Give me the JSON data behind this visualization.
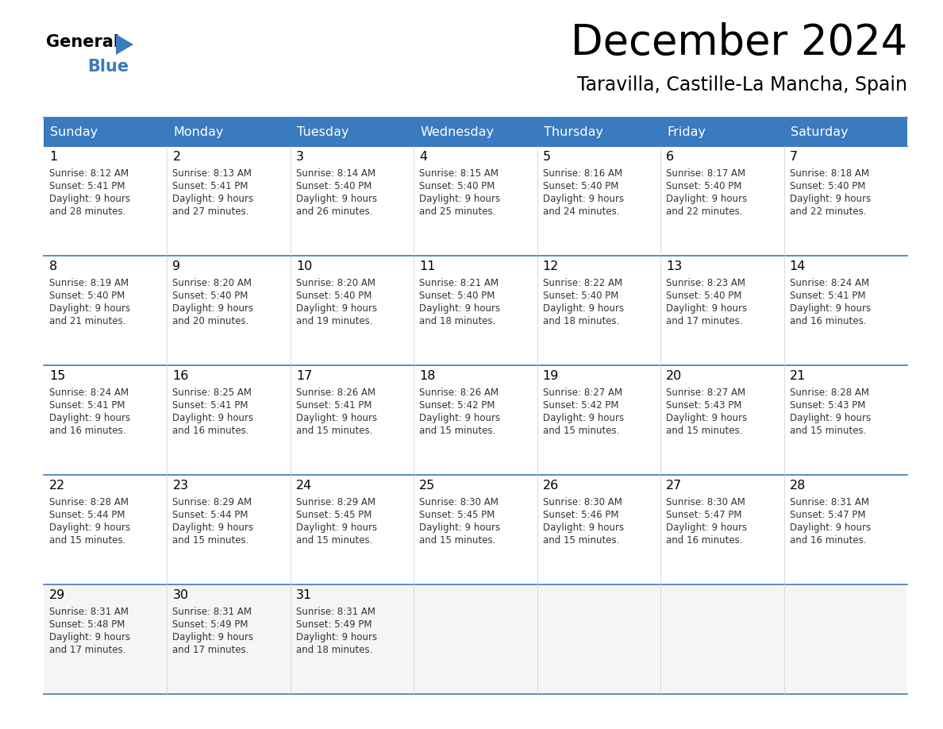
{
  "title": "December 2024",
  "subtitle": "Taravilla, Castille-La Mancha, Spain",
  "header_color": "#3a7abf",
  "header_text_color": "#ffffff",
  "cell_bg_white": "#ffffff",
  "cell_bg_gray": "#f2f2f2",
  "text_color_dark": "#222222",
  "line_color": "#3a7abf",
  "days_of_week": [
    "Sunday",
    "Monday",
    "Tuesday",
    "Wednesday",
    "Thursday",
    "Friday",
    "Saturday"
  ],
  "calendar": [
    [
      {
        "day": 1,
        "sunrise": "8:12 AM",
        "sunset": "5:41 PM",
        "daylight": "9 hours and 28 minutes."
      },
      {
        "day": 2,
        "sunrise": "8:13 AM",
        "sunset": "5:41 PM",
        "daylight": "9 hours and 27 minutes."
      },
      {
        "day": 3,
        "sunrise": "8:14 AM",
        "sunset": "5:40 PM",
        "daylight": "9 hours and 26 minutes."
      },
      {
        "day": 4,
        "sunrise": "8:15 AM",
        "sunset": "5:40 PM",
        "daylight": "9 hours and 25 minutes."
      },
      {
        "day": 5,
        "sunrise": "8:16 AM",
        "sunset": "5:40 PM",
        "daylight": "9 hours and 24 minutes."
      },
      {
        "day": 6,
        "sunrise": "8:17 AM",
        "sunset": "5:40 PM",
        "daylight": "9 hours and 22 minutes."
      },
      {
        "day": 7,
        "sunrise": "8:18 AM",
        "sunset": "5:40 PM",
        "daylight": "9 hours and 22 minutes."
      }
    ],
    [
      {
        "day": 8,
        "sunrise": "8:19 AM",
        "sunset": "5:40 PM",
        "daylight": "9 hours and 21 minutes."
      },
      {
        "day": 9,
        "sunrise": "8:20 AM",
        "sunset": "5:40 PM",
        "daylight": "9 hours and 20 minutes."
      },
      {
        "day": 10,
        "sunrise": "8:20 AM",
        "sunset": "5:40 PM",
        "daylight": "9 hours and 19 minutes."
      },
      {
        "day": 11,
        "sunrise": "8:21 AM",
        "sunset": "5:40 PM",
        "daylight": "9 hours and 18 minutes."
      },
      {
        "day": 12,
        "sunrise": "8:22 AM",
        "sunset": "5:40 PM",
        "daylight": "9 hours and 18 minutes."
      },
      {
        "day": 13,
        "sunrise": "8:23 AM",
        "sunset": "5:40 PM",
        "daylight": "9 hours and 17 minutes."
      },
      {
        "day": 14,
        "sunrise": "8:24 AM",
        "sunset": "5:41 PM",
        "daylight": "9 hours and 16 minutes."
      }
    ],
    [
      {
        "day": 15,
        "sunrise": "8:24 AM",
        "sunset": "5:41 PM",
        "daylight": "9 hours and 16 minutes."
      },
      {
        "day": 16,
        "sunrise": "8:25 AM",
        "sunset": "5:41 PM",
        "daylight": "9 hours and 16 minutes."
      },
      {
        "day": 17,
        "sunrise": "8:26 AM",
        "sunset": "5:41 PM",
        "daylight": "9 hours and 15 minutes."
      },
      {
        "day": 18,
        "sunrise": "8:26 AM",
        "sunset": "5:42 PM",
        "daylight": "9 hours and 15 minutes."
      },
      {
        "day": 19,
        "sunrise": "8:27 AM",
        "sunset": "5:42 PM",
        "daylight": "9 hours and 15 minutes."
      },
      {
        "day": 20,
        "sunrise": "8:27 AM",
        "sunset": "5:43 PM",
        "daylight": "9 hours and 15 minutes."
      },
      {
        "day": 21,
        "sunrise": "8:28 AM",
        "sunset": "5:43 PM",
        "daylight": "9 hours and 15 minutes."
      }
    ],
    [
      {
        "day": 22,
        "sunrise": "8:28 AM",
        "sunset": "5:44 PM",
        "daylight": "9 hours and 15 minutes."
      },
      {
        "day": 23,
        "sunrise": "8:29 AM",
        "sunset": "5:44 PM",
        "daylight": "9 hours and 15 minutes."
      },
      {
        "day": 24,
        "sunrise": "8:29 AM",
        "sunset": "5:45 PM",
        "daylight": "9 hours and 15 minutes."
      },
      {
        "day": 25,
        "sunrise": "8:30 AM",
        "sunset": "5:45 PM",
        "daylight": "9 hours and 15 minutes."
      },
      {
        "day": 26,
        "sunrise": "8:30 AM",
        "sunset": "5:46 PM",
        "daylight": "9 hours and 15 minutes."
      },
      {
        "day": 27,
        "sunrise": "8:30 AM",
        "sunset": "5:47 PM",
        "daylight": "9 hours and 16 minutes."
      },
      {
        "day": 28,
        "sunrise": "8:31 AM",
        "sunset": "5:47 PM",
        "daylight": "9 hours and 16 minutes."
      }
    ],
    [
      {
        "day": 29,
        "sunrise": "8:31 AM",
        "sunset": "5:48 PM",
        "daylight": "9 hours and 17 minutes."
      },
      {
        "day": 30,
        "sunrise": "8:31 AM",
        "sunset": "5:49 PM",
        "daylight": "9 hours and 17 minutes."
      },
      {
        "day": 31,
        "sunrise": "8:31 AM",
        "sunset": "5:49 PM",
        "daylight": "9 hours and 18 minutes."
      },
      null,
      null,
      null,
      null
    ]
  ]
}
